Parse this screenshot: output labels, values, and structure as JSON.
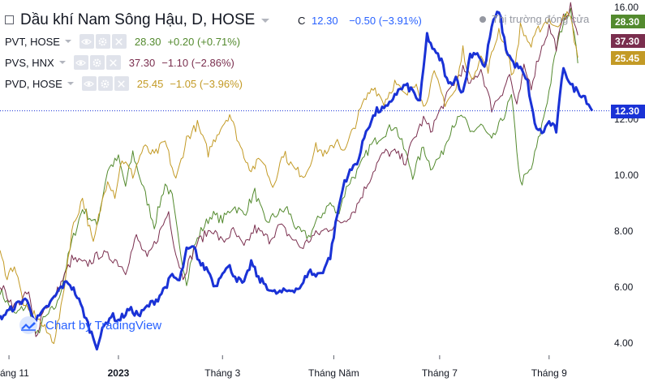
{
  "header": {
    "title": "Dầu khí Nam Sông Hậu, D, HOSE",
    "ohlc_label": "C",
    "close": "12.30",
    "change": "−0.50 (−3.91%)",
    "market_status": "Thị trường đóng cửa"
  },
  "series_legend": [
    {
      "symbol": "PVT, HOSE",
      "value": "28.30",
      "change": "+0.20 (+0.71%)",
      "color": "#538a2e"
    },
    {
      "symbol": "PVS, HNX",
      "value": "37.30",
      "change": "−1.10 (−2.86%)",
      "color": "#7a2e4e"
    },
    {
      "symbol": "PVD, HOSE",
      "value": "25.45",
      "change": "−1.05 (−3.96%)",
      "color": "#c39a25"
    }
  ],
  "price_tags": [
    {
      "value": "28.30",
      "color": "#538a2e"
    },
    {
      "value": "37.30",
      "color": "#7a2e4e"
    },
    {
      "value": "25.45",
      "color": "#c39a25"
    },
    {
      "value": "12.30",
      "color": "#1a32d6"
    }
  ],
  "watermark": "Chart by TradingView",
  "icons": [
    "eye-icon",
    "gear-icon",
    "close-icon",
    "tradingview-logo-icon"
  ],
  "chart_data": {
    "type": "line",
    "y_axis": {
      "ticks": [
        "4.00",
        "6.00",
        "8.00",
        "10.00",
        "12.00",
        "16.00"
      ],
      "range": [
        3.7,
        16.2
      ],
      "unit": "VND thousand",
      "position": "right"
    },
    "x_axis": {
      "ticks": [
        "áng 11",
        "2023",
        "Tháng 3",
        "Tháng Năm",
        "Tháng 7",
        "Tháng 9"
      ],
      "tick_index": [
        5,
        66,
        124,
        186,
        245,
        306
      ]
    },
    "grid": false,
    "last_value_line": 12.3,
    "series": [
      {
        "name": "PVT, HOSE",
        "role": "comparison",
        "color": "#538a2e",
        "anchors": [
          [
            0,
            5.9
          ],
          [
            8,
            5.0
          ],
          [
            16,
            5.4
          ],
          [
            20,
            4.2
          ],
          [
            24,
            4.8
          ],
          [
            32,
            5.4
          ],
          [
            40,
            7.6
          ],
          [
            46,
            8.8
          ],
          [
            54,
            8.2
          ],
          [
            60,
            10.2
          ],
          [
            66,
            10.6
          ],
          [
            70,
            9.6
          ],
          [
            74,
            10.8
          ],
          [
            80,
            9.5
          ],
          [
            86,
            8.2
          ],
          [
            92,
            9.7
          ],
          [
            96,
            9.2
          ],
          [
            100,
            7.4
          ],
          [
            104,
            6.2
          ],
          [
            108,
            7.4
          ],
          [
            112,
            8.0
          ],
          [
            118,
            8.6
          ],
          [
            124,
            8.4
          ],
          [
            130,
            8.9
          ],
          [
            136,
            8.6
          ],
          [
            142,
            9.4
          ],
          [
            148,
            8.3
          ],
          [
            154,
            8.6
          ],
          [
            160,
            8.8
          ],
          [
            166,
            8.0
          ],
          [
            172,
            7.8
          ],
          [
            178,
            8.5
          ],
          [
            184,
            9.0
          ],
          [
            188,
            8.6
          ],
          [
            194,
            9.7
          ],
          [
            200,
            10.2
          ],
          [
            206,
            11.0
          ],
          [
            212,
            11.4
          ],
          [
            216,
            11.6
          ],
          [
            220,
            11.8
          ],
          [
            226,
            10.8
          ],
          [
            230,
            10.0
          ],
          [
            236,
            11.0
          ],
          [
            240,
            10.3
          ],
          [
            246,
            10.7
          ],
          [
            252,
            11.8
          ],
          [
            258,
            12.1
          ],
          [
            262,
            11.5
          ],
          [
            268,
            11.8
          ],
          [
            274,
            11.2
          ],
          [
            280,
            12.0
          ],
          [
            285,
            12.8
          ],
          [
            290,
            9.7
          ],
          [
            296,
            10.2
          ],
          [
            301,
            11.5
          ],
          [
            306,
            13.0
          ],
          [
            310,
            14.5
          ],
          [
            314,
            15.5
          ],
          [
            318,
            16.0
          ],
          [
            322,
            14.0
          ]
        ]
      },
      {
        "name": "PVS, HNX",
        "role": "comparison",
        "color": "#7a2e4e",
        "anchors": [
          [
            0,
            6.1
          ],
          [
            8,
            5.3
          ],
          [
            16,
            5.8
          ],
          [
            20,
            4.2
          ],
          [
            24,
            5.2
          ],
          [
            30,
            5.6
          ],
          [
            36,
            6.4
          ],
          [
            40,
            7.0
          ],
          [
            48,
            6.8
          ],
          [
            56,
            7.2
          ],
          [
            64,
            7.0
          ],
          [
            70,
            6.6
          ],
          [
            76,
            7.8
          ],
          [
            82,
            7.0
          ],
          [
            88,
            7.8
          ],
          [
            94,
            8.7
          ],
          [
            98,
            7.2
          ],
          [
            102,
            6.4
          ],
          [
            106,
            7.0
          ],
          [
            110,
            7.6
          ],
          [
            118,
            8.1
          ],
          [
            124,
            7.6
          ],
          [
            130,
            8.0
          ],
          [
            136,
            7.4
          ],
          [
            142,
            8.1
          ],
          [
            150,
            7.7
          ],
          [
            156,
            8.2
          ],
          [
            162,
            7.8
          ],
          [
            168,
            7.4
          ],
          [
            174,
            7.8
          ],
          [
            180,
            8.0
          ],
          [
            186,
            8.2
          ],
          [
            192,
            8.4
          ],
          [
            198,
            8.8
          ],
          [
            204,
            9.6
          ],
          [
            210,
            10.4
          ],
          [
            214,
            10.8
          ],
          [
            220,
            10.8
          ],
          [
            226,
            10.5
          ],
          [
            230,
            11.2
          ],
          [
            236,
            12.0
          ],
          [
            240,
            11.6
          ],
          [
            246,
            12.4
          ],
          [
            252,
            13.2
          ],
          [
            258,
            13.8
          ],
          [
            262,
            13.2
          ],
          [
            268,
            13.8
          ],
          [
            274,
            12.4
          ],
          [
            280,
            13.0
          ],
          [
            284,
            13.6
          ],
          [
            288,
            12.4
          ],
          [
            292,
            13.8
          ],
          [
            296,
            13.2
          ],
          [
            300,
            14.2
          ],
          [
            306,
            15.3
          ],
          [
            310,
            14.6
          ],
          [
            314,
            15.6
          ],
          [
            318,
            16.0
          ],
          [
            322,
            15.0
          ]
        ]
      },
      {
        "name": "PVD, HOSE",
        "role": "comparison",
        "color": "#c39a25",
        "anchors": [
          [
            0,
            7.2
          ],
          [
            4,
            6.4
          ],
          [
            8,
            6.8
          ],
          [
            14,
            5.2
          ],
          [
            20,
            5.0
          ],
          [
            26,
            4.4
          ],
          [
            30,
            4.1
          ],
          [
            34,
            5.2
          ],
          [
            40,
            8.0
          ],
          [
            46,
            9.2
          ],
          [
            52,
            7.5
          ],
          [
            56,
            8.8
          ],
          [
            60,
            9.9
          ],
          [
            64,
            9.3
          ],
          [
            68,
            10.6
          ],
          [
            74,
            10.0
          ],
          [
            80,
            11.0
          ],
          [
            86,
            10.7
          ],
          [
            92,
            11.2
          ],
          [
            98,
            9.8
          ],
          [
            104,
            11.3
          ],
          [
            110,
            11.8
          ],
          [
            116,
            10.8
          ],
          [
            122,
            11.6
          ],
          [
            128,
            12.2
          ],
          [
            134,
            11.0
          ],
          [
            140,
            10.2
          ],
          [
            146,
            10.6
          ],
          [
            152,
            9.6
          ],
          [
            158,
            10.8
          ],
          [
            164,
            10.2
          ],
          [
            170,
            10.0
          ],
          [
            176,
            11.0
          ],
          [
            182,
            10.7
          ],
          [
            188,
            11.3
          ],
          [
            192,
            10.8
          ],
          [
            196,
            11.5
          ],
          [
            202,
            12.5
          ],
          [
            208,
            13.2
          ],
          [
            214,
            12.6
          ],
          [
            220,
            13.3
          ],
          [
            226,
            12.8
          ],
          [
            232,
            13.4
          ],
          [
            236,
            12.4
          ],
          [
            242,
            13.6
          ],
          [
            248,
            12.6
          ],
          [
            254,
            13.0
          ],
          [
            258,
            14.5
          ],
          [
            262,
            13.4
          ],
          [
            268,
            14.2
          ],
          [
            272,
            13.8
          ],
          [
            278,
            15.2
          ],
          [
            282,
            14.5
          ],
          [
            286,
            13.5
          ],
          [
            290,
            15.3
          ],
          [
            296,
            14.6
          ],
          [
            300,
            15.2
          ],
          [
            306,
            15.6
          ],
          [
            310,
            15.2
          ],
          [
            314,
            15.8
          ],
          [
            318,
            15.6
          ],
          [
            322,
            14.2
          ]
        ]
      },
      {
        "name": "Dầu khí Nam Sông Hậu, D, HOSE",
        "role": "main",
        "color": "#1a32d6",
        "anchors": [
          [
            0,
            4.9
          ],
          [
            8,
            5.3
          ],
          [
            14,
            5.6
          ],
          [
            20,
            4.8
          ],
          [
            24,
            5.1
          ],
          [
            30,
            5.6
          ],
          [
            34,
            6.0
          ],
          [
            38,
            6.2
          ],
          [
            42,
            5.8
          ],
          [
            46,
            5.2
          ],
          [
            50,
            4.5
          ],
          [
            54,
            3.9
          ],
          [
            58,
            4.6
          ],
          [
            62,
            5.0
          ],
          [
            66,
            4.8
          ],
          [
            72,
            5.2
          ],
          [
            78,
            5.0
          ],
          [
            82,
            5.3
          ],
          [
            88,
            5.6
          ],
          [
            92,
            6.0
          ],
          [
            96,
            6.4
          ],
          [
            100,
            6.2
          ],
          [
            104,
            7.3
          ],
          [
            108,
            7.4
          ],
          [
            112,
            6.8
          ],
          [
            116,
            6.6
          ],
          [
            120,
            6.0
          ],
          [
            124,
            6.6
          ],
          [
            128,
            6.7
          ],
          [
            132,
            6.3
          ],
          [
            136,
            6.1
          ],
          [
            140,
            6.9
          ],
          [
            144,
            6.3
          ],
          [
            148,
            6.1
          ],
          [
            152,
            5.8
          ],
          [
            156,
            5.8
          ],
          [
            162,
            5.9
          ],
          [
            168,
            6.0
          ],
          [
            172,
            6.6
          ],
          [
            176,
            6.4
          ],
          [
            180,
            6.6
          ],
          [
            184,
            7.1
          ],
          [
            188,
            8.6
          ],
          [
            192,
            9.8
          ],
          [
            196,
            10.2
          ],
          [
            200,
            10.6
          ],
          [
            204,
            11.6
          ],
          [
            210,
            12.3
          ],
          [
            216,
            12.4
          ],
          [
            220,
            12.9
          ],
          [
            226,
            13.2
          ],
          [
            230,
            13.0
          ],
          [
            234,
            12.6
          ],
          [
            238,
            15.0
          ],
          [
            242,
            14.4
          ],
          [
            246,
            14.1
          ],
          [
            250,
            13.2
          ],
          [
            254,
            13.5
          ],
          [
            258,
            12.9
          ],
          [
            262,
            14.3
          ],
          [
            266,
            14.4
          ],
          [
            270,
            13.8
          ],
          [
            274,
            15.3
          ],
          [
            278,
            15.9
          ],
          [
            282,
            14.5
          ],
          [
            286,
            14.0
          ],
          [
            290,
            13.8
          ],
          [
            294,
            13.3
          ],
          [
            298,
            11.8
          ],
          [
            302,
            11.5
          ],
          [
            306,
            11.9
          ],
          [
            310,
            11.6
          ],
          [
            314,
            13.9
          ],
          [
            318,
            13.2
          ],
          [
            322,
            13.0
          ],
          [
            326,
            12.8
          ],
          [
            330,
            12.3
          ]
        ]
      }
    ]
  }
}
